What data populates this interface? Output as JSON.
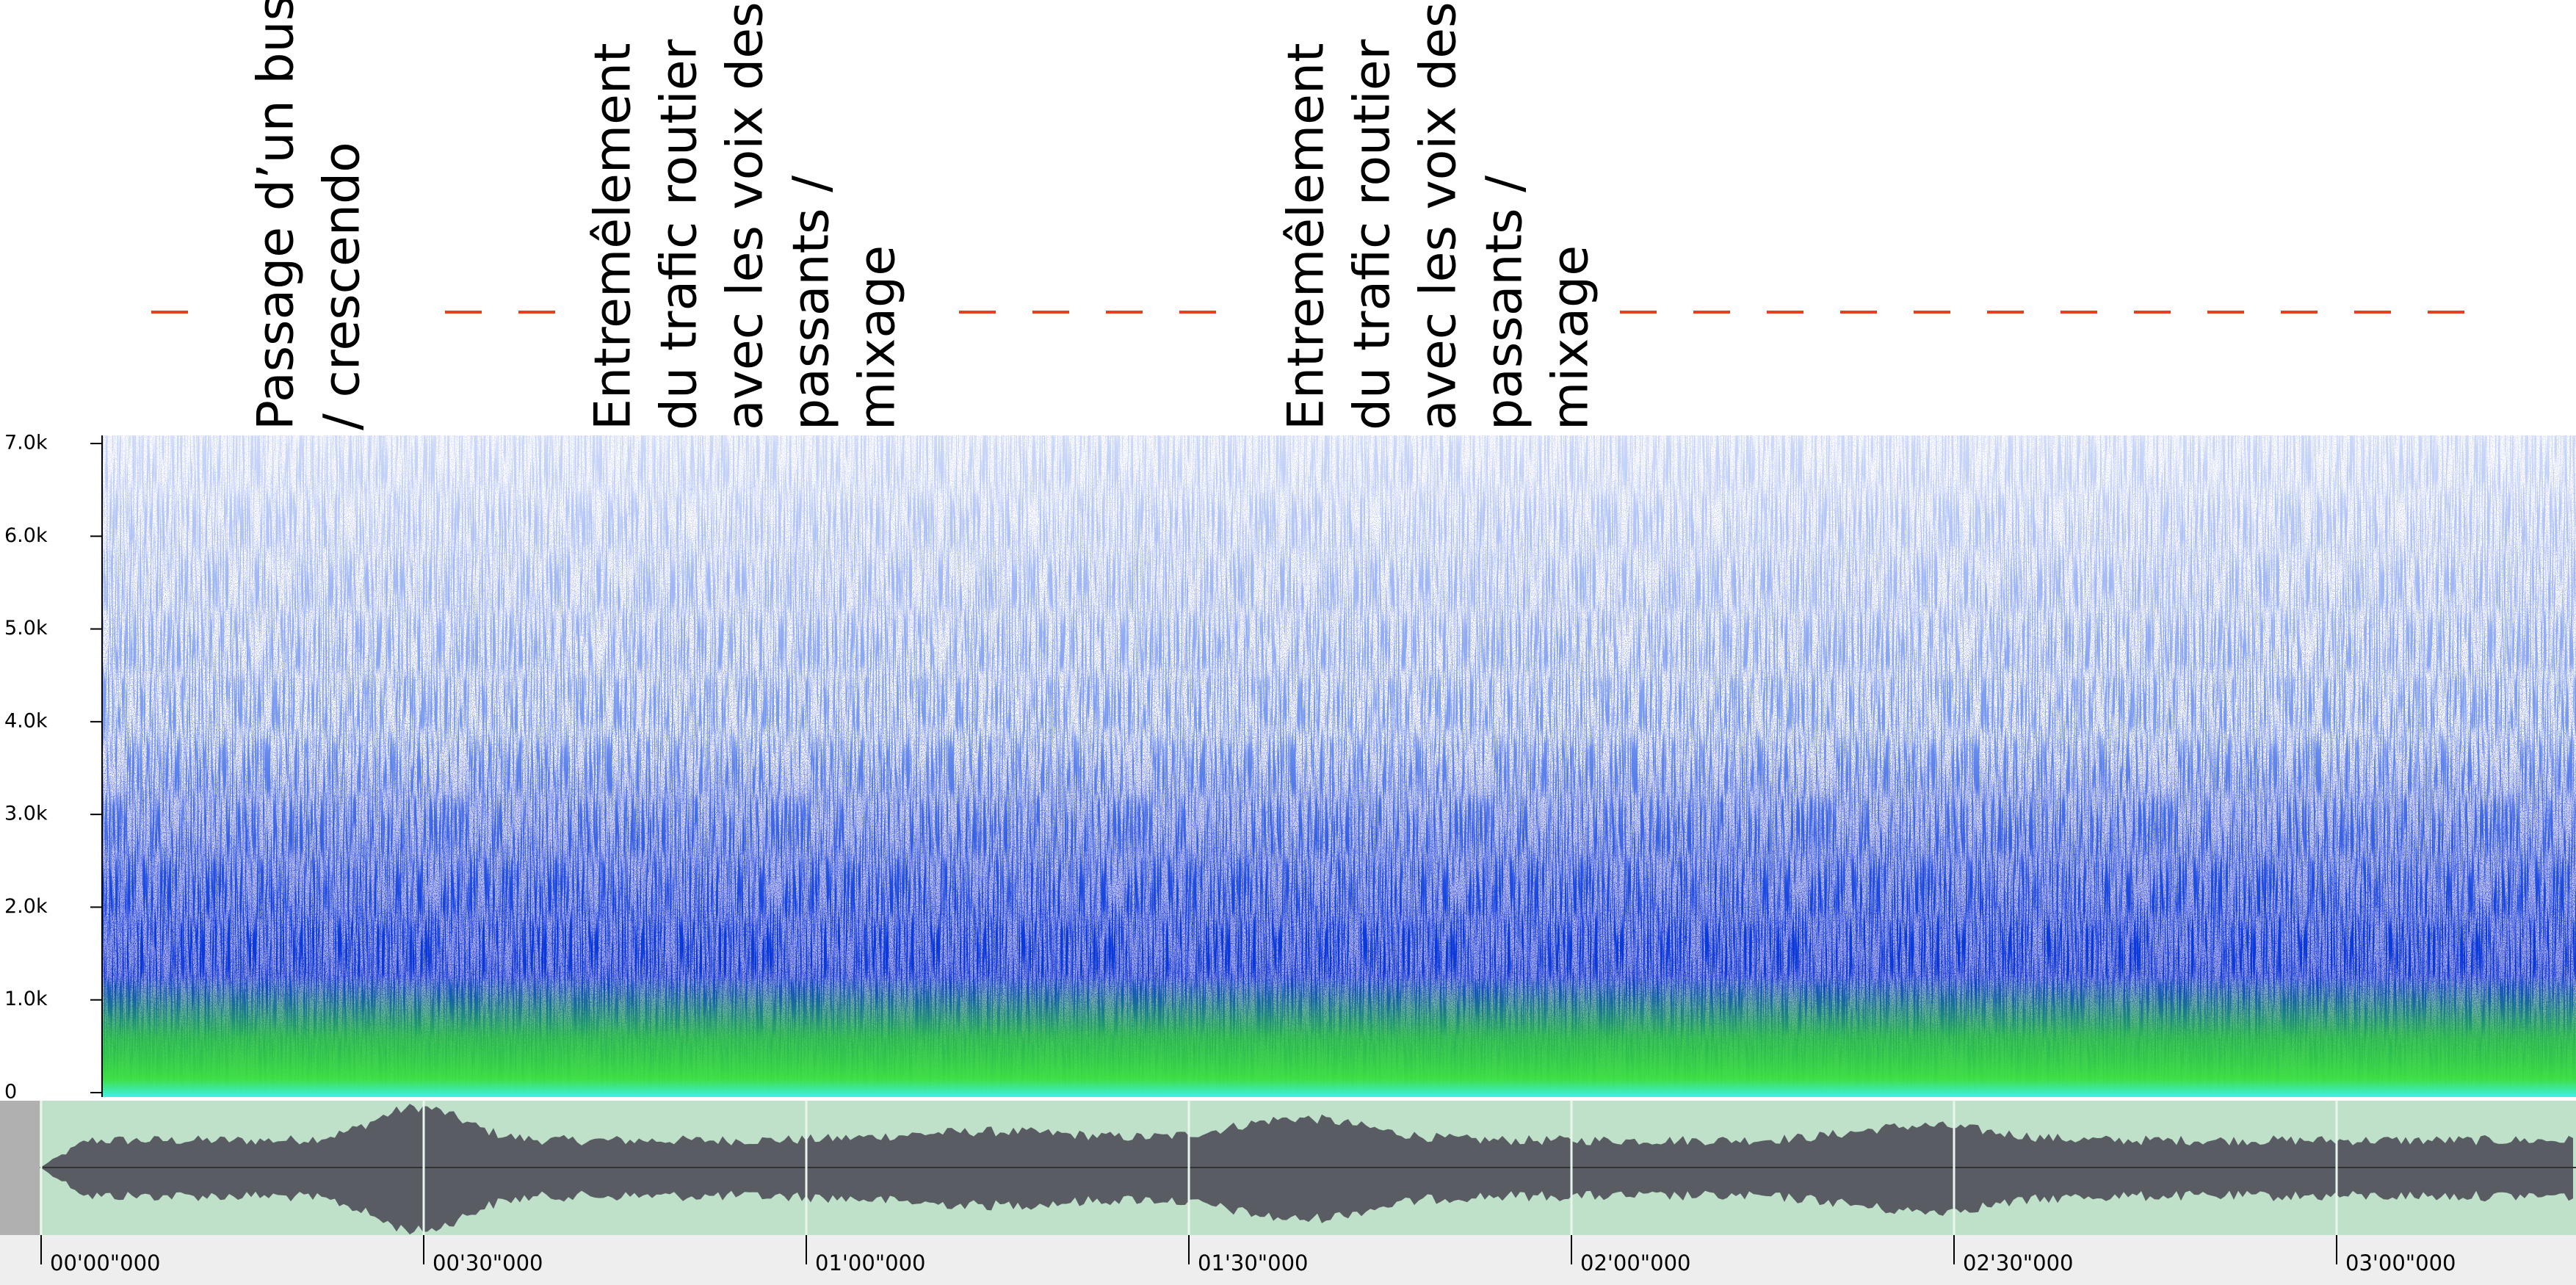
{
  "annotations": [
    {
      "lines": [
        "Passage d’un bus",
        "/ crescendo"
      ]
    },
    {
      "lines": [
        "Entremêlement",
        "du trafic routier",
        "avec les voix des",
        "passants /",
        "mixage"
      ]
    },
    {
      "lines": [
        "Entremêlement",
        "du trafic routier",
        "avec les voix des",
        "passants /",
        "mixage"
      ]
    }
  ],
  "frequency_labels": [
    "7.0k",
    "6.0k",
    "5.0k",
    "4.0k",
    "3.0k",
    "2.0k",
    "1.0k",
    "0"
  ],
  "time_labels": [
    "00'00\"000",
    "00'30\"000",
    "01'00\"000",
    "01'30\"000",
    "02'00\"000",
    "02'30\"000",
    "03'00\"000"
  ]
}
